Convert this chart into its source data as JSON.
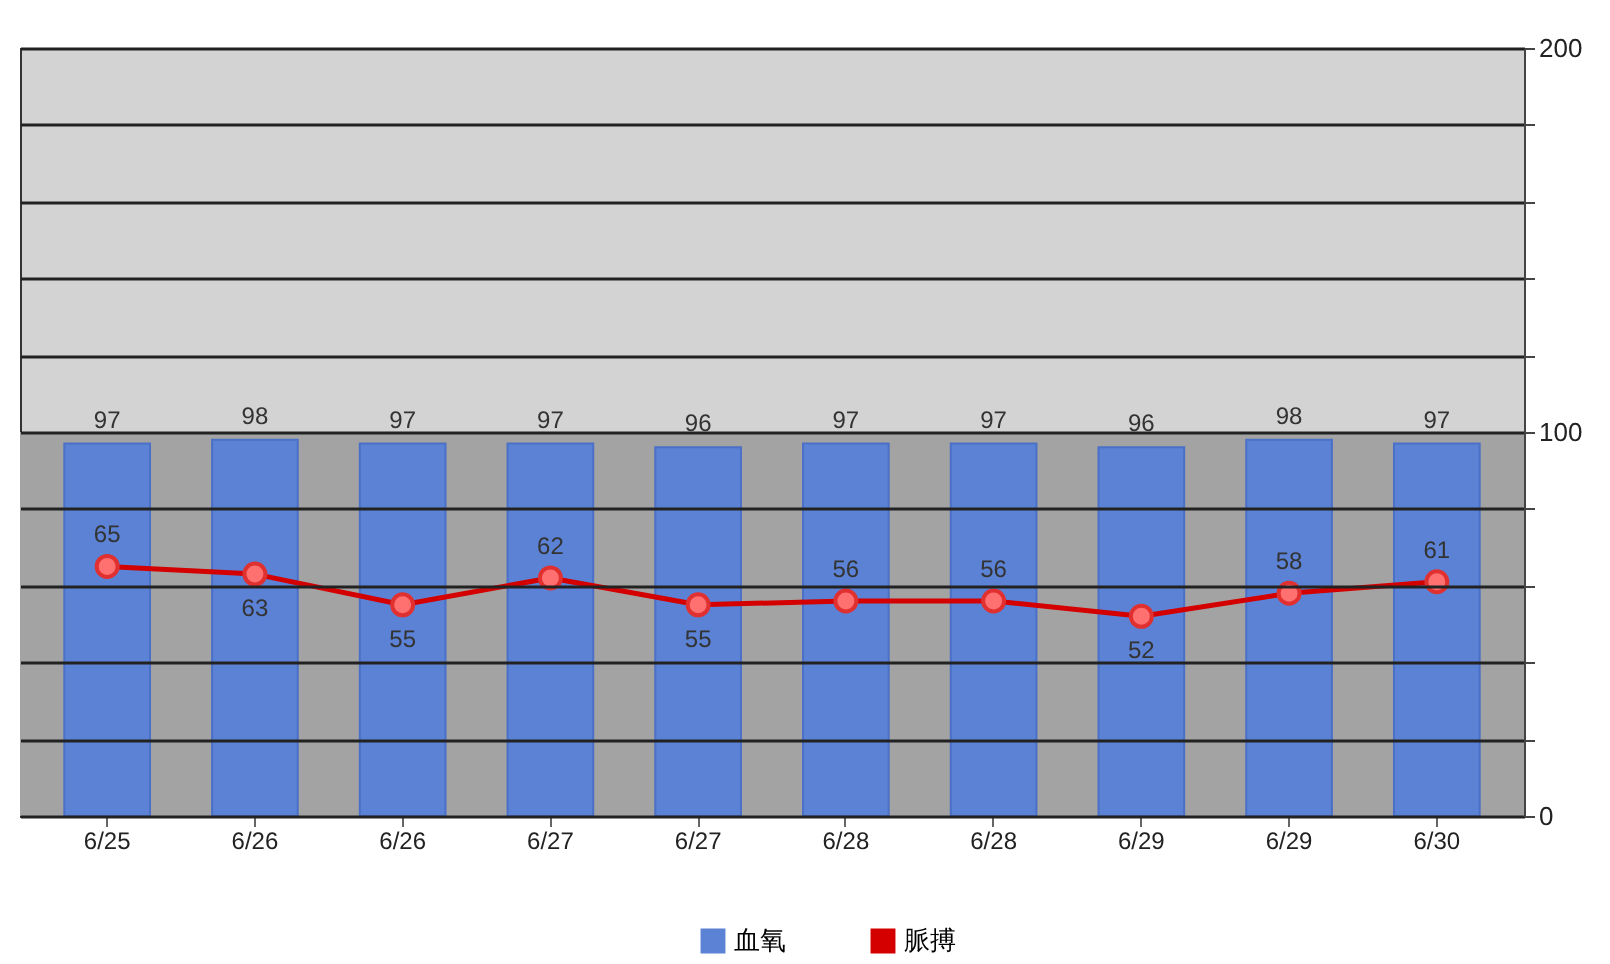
{
  "chart_data": {
    "type": "bar",
    "categories": [
      "6/25",
      "6/26",
      "6/26",
      "6/27",
      "6/27",
      "6/28",
      "6/28",
      "6/29",
      "6/29",
      "6/30"
    ],
    "series": [
      {
        "name": "血氧",
        "color": "#5b82d4",
        "values": [
          97,
          98,
          97,
          97,
          96,
          97,
          97,
          96,
          98,
          97
        ]
      },
      {
        "name": "脈搏",
        "type": "line",
        "color": "#d40000",
        "values": [
          65,
          63,
          55,
          62,
          55,
          56,
          56,
          52,
          58,
          61
        ]
      }
    ],
    "ylim": [
      0,
      200
    ],
    "yticks": [
      0,
      {
        "value": 20,
        "label": null
      },
      {
        "value": 40,
        "label": null
      },
      {
        "value": 60,
        "label": null
      },
      {
        "value": 80,
        "label": null
      },
      100,
      {
        "value": 120,
        "label": null
      },
      {
        "value": 140,
        "label": null
      },
      {
        "value": 160,
        "label": null
      },
      {
        "value": 180,
        "label": null
      },
      200
    ],
    "bands": [
      {
        "axis": "y",
        "from": 0,
        "to": 100,
        "color": "#a3a3a3"
      }
    ],
    "grid": true,
    "data_labels": true,
    "legend": "bottom",
    "marker": "circle"
  }
}
